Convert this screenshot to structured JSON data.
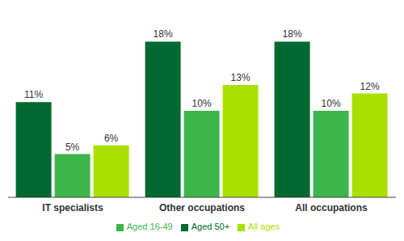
{
  "chart_data": {
    "type": "bar",
    "categories": [
      "IT specialists",
      "Other occupations",
      "All occupations"
    ],
    "series": [
      {
        "name": "Aged 50+",
        "color": "#00692f",
        "values": [
          11,
          18,
          18
        ],
        "value_labels": [
          "11%",
          "18%",
          "18%"
        ]
      },
      {
        "name": "Aged 16-49",
        "color": "#3db54a",
        "values": [
          5,
          10,
          10
        ],
        "value_labels": [
          "5%",
          "10%",
          "10%"
        ]
      },
      {
        "name": "All ages",
        "color": "#a9e000",
        "values": [
          6,
          13,
          12
        ],
        "value_labels": [
          "6%",
          "13%",
          "12%"
        ]
      }
    ],
    "ylim": [
      0,
      20
    ],
    "data_labels": true,
    "tick_labels": "x",
    "legend": "bottom",
    "grid": false
  }
}
